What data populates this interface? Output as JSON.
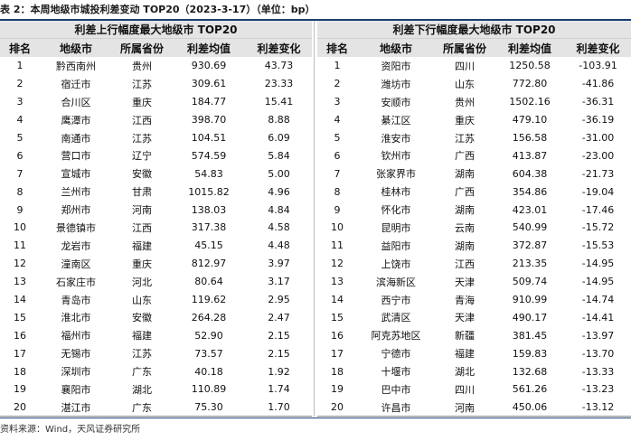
{
  "caption": "表 2：本周地级市城投利差变动 TOP20（2023-3-17）（单位：bp）",
  "source": "资料来源：Wind，天风证券研究所",
  "left": {
    "title": "利差上行幅度最大地级市 TOP20",
    "headers": [
      "排名",
      "地级市",
      "所属省份",
      "利差均值",
      "利差变化"
    ],
    "rows": [
      [
        "1",
        "黔西南州",
        "贵州",
        "930.69",
        "43.73"
      ],
      [
        "2",
        "宿迁市",
        "江苏",
        "309.61",
        "23.33"
      ],
      [
        "3",
        "合川区",
        "重庆",
        "184.77",
        "15.41"
      ],
      [
        "4",
        "鹰潭市",
        "江西",
        "398.70",
        "8.88"
      ],
      [
        "5",
        "南通市",
        "江苏",
        "104.51",
        "6.09"
      ],
      [
        "6",
        "营口市",
        "辽宁",
        "574.59",
        "5.84"
      ],
      [
        "7",
        "宣城市",
        "安徽",
        "54.83",
        "5.00"
      ],
      [
        "8",
        "兰州市",
        "甘肃",
        "1015.82",
        "4.96"
      ],
      [
        "9",
        "郑州市",
        "河南",
        "138.03",
        "4.84"
      ],
      [
        "10",
        "景德镇市",
        "江西",
        "317.38",
        "4.58"
      ],
      [
        "11",
        "龙岩市",
        "福建",
        "45.15",
        "4.48"
      ],
      [
        "12",
        "潼南区",
        "重庆",
        "812.97",
        "3.97"
      ],
      [
        "13",
        "石家庄市",
        "河北",
        "80.64",
        "3.17"
      ],
      [
        "14",
        "青岛市",
        "山东",
        "119.62",
        "2.95"
      ],
      [
        "15",
        "淮北市",
        "安徽",
        "264.28",
        "2.47"
      ],
      [
        "16",
        "福州市",
        "福建",
        "52.90",
        "2.15"
      ],
      [
        "17",
        "无锡市",
        "江苏",
        "73.57",
        "2.15"
      ],
      [
        "18",
        "深圳市",
        "广东",
        "40.18",
        "1.92"
      ],
      [
        "19",
        "襄阳市",
        "湖北",
        "110.89",
        "1.74"
      ],
      [
        "20",
        "湛江市",
        "广东",
        "75.30",
        "1.70"
      ]
    ]
  },
  "right": {
    "title": "利差下行幅度最大地级市 TOP20",
    "headers": [
      "排名",
      "地级市",
      "所属省份",
      "利差均值",
      "利差变化"
    ],
    "rows": [
      [
        "1",
        "资阳市",
        "四川",
        "1250.58",
        "-103.91"
      ],
      [
        "2",
        "潍坊市",
        "山东",
        "772.80",
        "-41.86"
      ],
      [
        "3",
        "安顺市",
        "贵州",
        "1502.16",
        "-36.31"
      ],
      [
        "4",
        "綦江区",
        "重庆",
        "479.10",
        "-36.19"
      ],
      [
        "5",
        "淮安市",
        "江苏",
        "156.58",
        "-31.00"
      ],
      [
        "6",
        "钦州市",
        "广西",
        "413.87",
        "-23.00"
      ],
      [
        "7",
        "张家界市",
        "湖南",
        "604.38",
        "-21.73"
      ],
      [
        "8",
        "桂林市",
        "广西",
        "354.86",
        "-19.04"
      ],
      [
        "9",
        "怀化市",
        "湖南",
        "423.01",
        "-17.46"
      ],
      [
        "10",
        "昆明市",
        "云南",
        "540.99",
        "-15.72"
      ],
      [
        "11",
        "益阳市",
        "湖南",
        "372.87",
        "-15.53"
      ],
      [
        "12",
        "上饶市",
        "江西",
        "213.35",
        "-14.95"
      ],
      [
        "13",
        "滨海新区",
        "天津",
        "509.74",
        "-14.95"
      ],
      [
        "14",
        "西宁市",
        "青海",
        "910.99",
        "-14.74"
      ],
      [
        "15",
        "武清区",
        "天津",
        "490.17",
        "-14.41"
      ],
      [
        "16",
        "阿克苏地区",
        "新疆",
        "381.45",
        "-13.97"
      ],
      [
        "17",
        "宁德市",
        "福建",
        "159.83",
        "-13.70"
      ],
      [
        "18",
        "十堰市",
        "湖北",
        "132.68",
        "-13.33"
      ],
      [
        "19",
        "巴中市",
        "四川",
        "561.26",
        "-13.23"
      ],
      [
        "20",
        "许昌市",
        "河南",
        "450.06",
        "-13.12"
      ]
    ]
  }
}
